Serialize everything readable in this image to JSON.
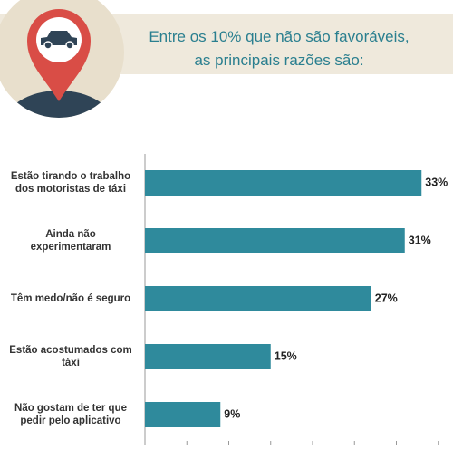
{
  "chart_data": {
    "type": "hbar",
    "title": "Entre os 10% que não são favoráveis,\nas principais razões são:",
    "categories": [
      "Estão tirando o trabalho\ndos motoristas de táxi",
      "Ainda não\nexperimentaram",
      "Têm medo/não é seguro",
      "Estão acostumados com\ntáxi",
      "Não gostam de ter que\npedir pelo aplicativo"
    ],
    "values": [
      33,
      31,
      27,
      15,
      9
    ],
    "value_labels": [
      "33%",
      "31%",
      "27%",
      "15%",
      "9%"
    ],
    "color": "#2f8a9c",
    "xlim": [
      0,
      36
    ],
    "xticks": [
      0,
      5,
      10,
      15,
      20,
      25,
      30,
      35
    ],
    "grid": false
  }
}
